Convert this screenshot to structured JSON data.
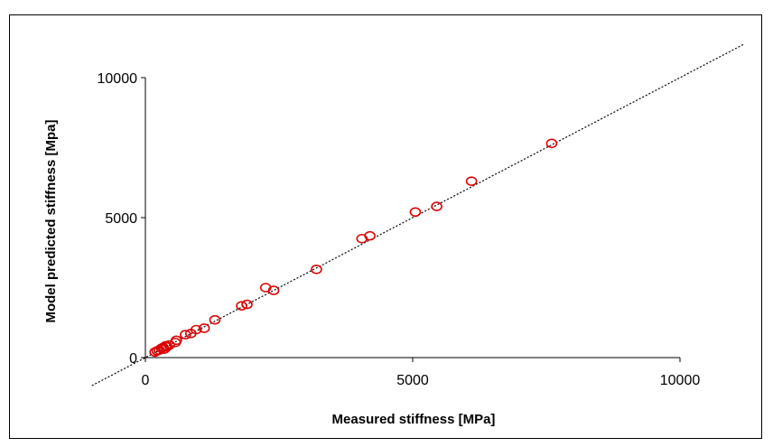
{
  "chart_data": {
    "type": "scatter",
    "title": "",
    "xlabel": "Measured stiffness [MPa]",
    "ylabel": "Model predicted stiffness [Mpa]",
    "xlim": [
      0,
      10000
    ],
    "ylim": [
      0,
      10000
    ],
    "x_ticks": [
      0,
      5000,
      10000
    ],
    "y_ticks": [
      0,
      5000,
      10000
    ],
    "x_tick_labels": [
      "0",
      "5000",
      "10000"
    ],
    "y_tick_labels": [
      "0",
      "5000",
      "10000"
    ],
    "grid": false,
    "legend": "none",
    "marker": "open-circle",
    "marker_color": "#dd0000",
    "reference_line": {
      "style": "dotted",
      "color": "#000000",
      "slope": 1,
      "from": -1000,
      "to": 11200
    },
    "points": [
      {
        "x": 180,
        "y": 200
      },
      {
        "x": 220,
        "y": 240
      },
      {
        "x": 260,
        "y": 270
      },
      {
        "x": 300,
        "y": 330
      },
      {
        "x": 330,
        "y": 360
      },
      {
        "x": 350,
        "y": 300
      },
      {
        "x": 380,
        "y": 420
      },
      {
        "x": 400,
        "y": 380
      },
      {
        "x": 450,
        "y": 450
      },
      {
        "x": 560,
        "y": 540
      },
      {
        "x": 580,
        "y": 620
      },
      {
        "x": 750,
        "y": 820
      },
      {
        "x": 850,
        "y": 860
      },
      {
        "x": 950,
        "y": 1000
      },
      {
        "x": 1100,
        "y": 1050
      },
      {
        "x": 1300,
        "y": 1350
      },
      {
        "x": 1800,
        "y": 1850
      },
      {
        "x": 1900,
        "y": 1900
      },
      {
        "x": 2250,
        "y": 2500
      },
      {
        "x": 2400,
        "y": 2400
      },
      {
        "x": 3200,
        "y": 3150
      },
      {
        "x": 4050,
        "y": 4250
      },
      {
        "x": 4200,
        "y": 4350
      },
      {
        "x": 5050,
        "y": 5200
      },
      {
        "x": 5450,
        "y": 5400
      },
      {
        "x": 6100,
        "y": 6300
      },
      {
        "x": 7600,
        "y": 7650
      }
    ]
  }
}
